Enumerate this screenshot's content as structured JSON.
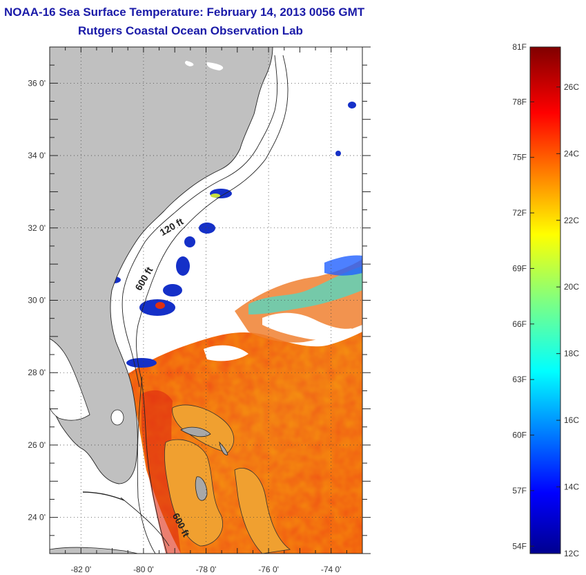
{
  "header": {
    "title": "NOAA-16 Sea Surface Temperature:  February 14, 2013 0056 GMT",
    "subtitle": "Rutgers Coastal Ocean Observation Lab"
  },
  "map": {
    "lon_range": [
      -83,
      -73
    ],
    "lat_range": [
      23,
      37
    ],
    "x_ticks": [
      {
        "lon": -82,
        "label": "-82 0'"
      },
      {
        "lon": -80,
        "label": "-80 0'"
      },
      {
        "lon": -78,
        "label": "-78 0'"
      },
      {
        "lon": -76,
        "label": "-76 0'"
      },
      {
        "lon": -74,
        "label": "-74 0'"
      }
    ],
    "y_ticks": [
      {
        "lat": 24,
        "label": "24 0'"
      },
      {
        "lat": 26,
        "label": "26 0'"
      },
      {
        "lat": 28,
        "label": "28 0'"
      },
      {
        "lat": 30,
        "label": "30 0'"
      },
      {
        "lat": 32,
        "label": "32 0'"
      },
      {
        "lat": 34,
        "label": "34 0'"
      },
      {
        "lat": 36,
        "label": "36 0'"
      }
    ],
    "contour_labels": [
      "120 ft",
      "600 ft",
      "600 ft"
    ],
    "land_color": "#c0c0c0",
    "cloud_color": "#ffffff"
  },
  "colorbar": {
    "min_c": 12,
    "max_c": 27.2,
    "fahrenheit_labels": [
      "81F",
      "78F",
      "75F",
      "72F",
      "69F",
      "66F",
      "63F",
      "60F",
      "57F",
      "54F"
    ],
    "celsius_labels": [
      "26C",
      "24C",
      "22C",
      "20C",
      "18C",
      "16C",
      "14C",
      "12C"
    ],
    "colormap": "jet"
  }
}
